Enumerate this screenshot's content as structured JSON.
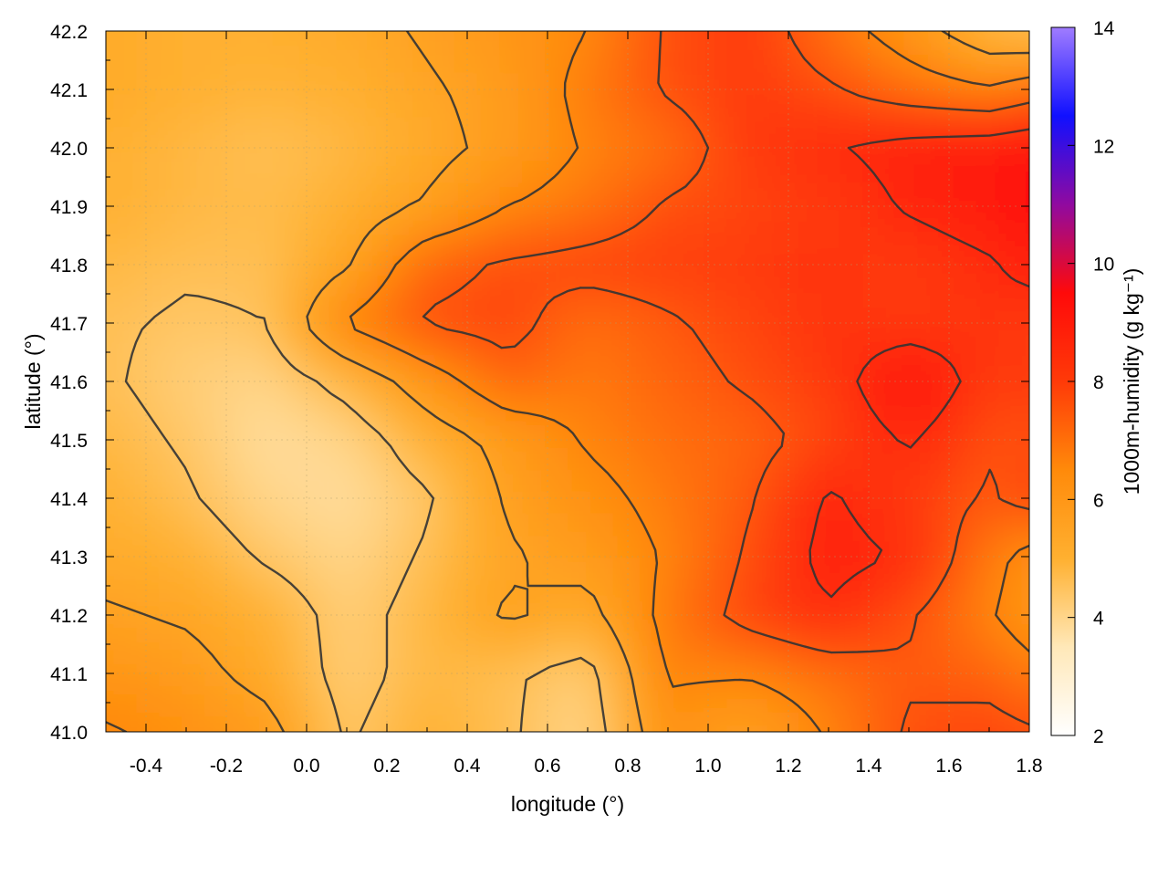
{
  "chart_data": {
    "type": "heatmap",
    "title": "",
    "xlabel": "longitude (°)",
    "ylabel": "latitude (°)",
    "colorbar_label": "1000m-humidity (g kg⁻¹)",
    "xlim": [
      -0.5,
      1.8
    ],
    "ylim": [
      41.0,
      42.2
    ],
    "clim": [
      2,
      14
    ],
    "x_ticks": [
      "-0.4",
      "-0.2",
      "0.0",
      "0.2",
      "0.4",
      "0.6",
      "0.8",
      "1.0",
      "1.2",
      "1.4",
      "1.6",
      "1.8"
    ],
    "x_tick_values": [
      -0.4,
      -0.2,
      0.0,
      0.2,
      0.4,
      0.6,
      0.8,
      1.0,
      1.2,
      1.4,
      1.6,
      1.8
    ],
    "y_ticks": [
      "41.0",
      "41.1",
      "41.2",
      "41.3",
      "41.4",
      "41.5",
      "41.6",
      "41.7",
      "41.8",
      "41.9",
      "42.0",
      "42.1",
      "42.2"
    ],
    "y_tick_values": [
      41.0,
      41.1,
      41.2,
      41.3,
      41.4,
      41.5,
      41.6,
      41.7,
      41.8,
      41.9,
      42.0,
      42.1,
      42.2
    ],
    "colorbar_ticks": [
      "2",
      "4",
      "6",
      "8",
      "10",
      "12",
      "14"
    ],
    "colorbar_tick_values": [
      2,
      4,
      6,
      8,
      10,
      12,
      14
    ],
    "colormap": [
      "#ffffff",
      "#ffe8b8",
      "#ffb030",
      "#ff8a0a",
      "#ff3a08",
      "#ff0a0a",
      "#900aa0",
      "#1010ff",
      "#a07cff"
    ],
    "grid": true,
    "contour_color": "#333333",
    "grid_x": [
      -0.5,
      -0.3,
      -0.1,
      0.1,
      0.3,
      0.5,
      0.7,
      0.9,
      1.1,
      1.3,
      1.5,
      1.7,
      1.8
    ],
    "grid_y": [
      42.2,
      42.1,
      42.0,
      41.9,
      41.8,
      41.7,
      41.6,
      41.5,
      41.4,
      41.3,
      41.2,
      41.1,
      41.0
    ],
    "grid_values": [
      [
        5.2,
        5.0,
        5.0,
        5.2,
        5.6,
        6.0,
        6.5,
        7.6,
        8.0,
        7.0,
        6.0,
        4.8,
        4.6
      ],
      [
        5.2,
        5.0,
        4.9,
        5.0,
        5.4,
        5.8,
        6.8,
        7.6,
        8.0,
        7.6,
        7.0,
        6.6,
        7.0
      ],
      [
        5.0,
        4.8,
        4.6,
        4.8,
        5.2,
        5.8,
        6.6,
        7.0,
        8.0,
        8.4,
        8.8,
        9.0,
        9.2
      ],
      [
        5.0,
        4.8,
        4.7,
        5.0,
        5.6,
        6.5,
        6.9,
        7.6,
        7.8,
        8.0,
        8.6,
        9.0,
        9.4
      ],
      [
        4.8,
        4.6,
        4.6,
        5.4,
        7.2,
        7.6,
        7.8,
        7.9,
        8.0,
        8.2,
        8.0,
        8.4,
        8.8
      ],
      [
        4.6,
        4.4,
        4.5,
        6.6,
        7.6,
        7.8,
        7.0,
        7.4,
        7.8,
        8.2,
        8.0,
        8.2,
        8.0
      ],
      [
        4.6,
        4.2,
        4.0,
        4.8,
        6.0,
        7.2,
        6.8,
        7.2,
        7.6,
        8.0,
        9.4,
        8.0,
        8.0
      ],
      [
        4.8,
        4.4,
        3.8,
        4.0,
        5.0,
        5.8,
        6.6,
        7.0,
        7.2,
        7.8,
        8.6,
        7.6,
        7.6
      ],
      [
        5.0,
        4.6,
        4.0,
        3.8,
        4.4,
        5.6,
        6.2,
        6.8,
        7.4,
        8.6,
        8.0,
        7.4,
        7.8
      ],
      [
        5.2,
        5.0,
        4.4,
        4.0,
        4.6,
        5.4,
        5.8,
        6.6,
        7.6,
        8.8,
        8.4,
        6.8,
        6.2
      ],
      [
        5.6,
        5.4,
        5.0,
        4.2,
        4.8,
        5.6,
        5.2,
        6.8,
        7.8,
        8.4,
        7.6,
        6.6,
        6.0
      ],
      [
        6.0,
        5.8,
        5.2,
        4.2,
        4.8,
        4.6,
        4.2,
        6.6,
        6.6,
        7.0,
        7.4,
        7.2,
        6.8
      ],
      [
        6.6,
        6.2,
        5.8,
        4.4,
        5.0,
        4.6,
        4.0,
        6.2,
        5.6,
        6.6,
        7.6,
        7.8,
        7.6
      ]
    ],
    "contour_levels": [
      4.5,
      5.5,
      6.5,
      7.5,
      8.5
    ]
  }
}
